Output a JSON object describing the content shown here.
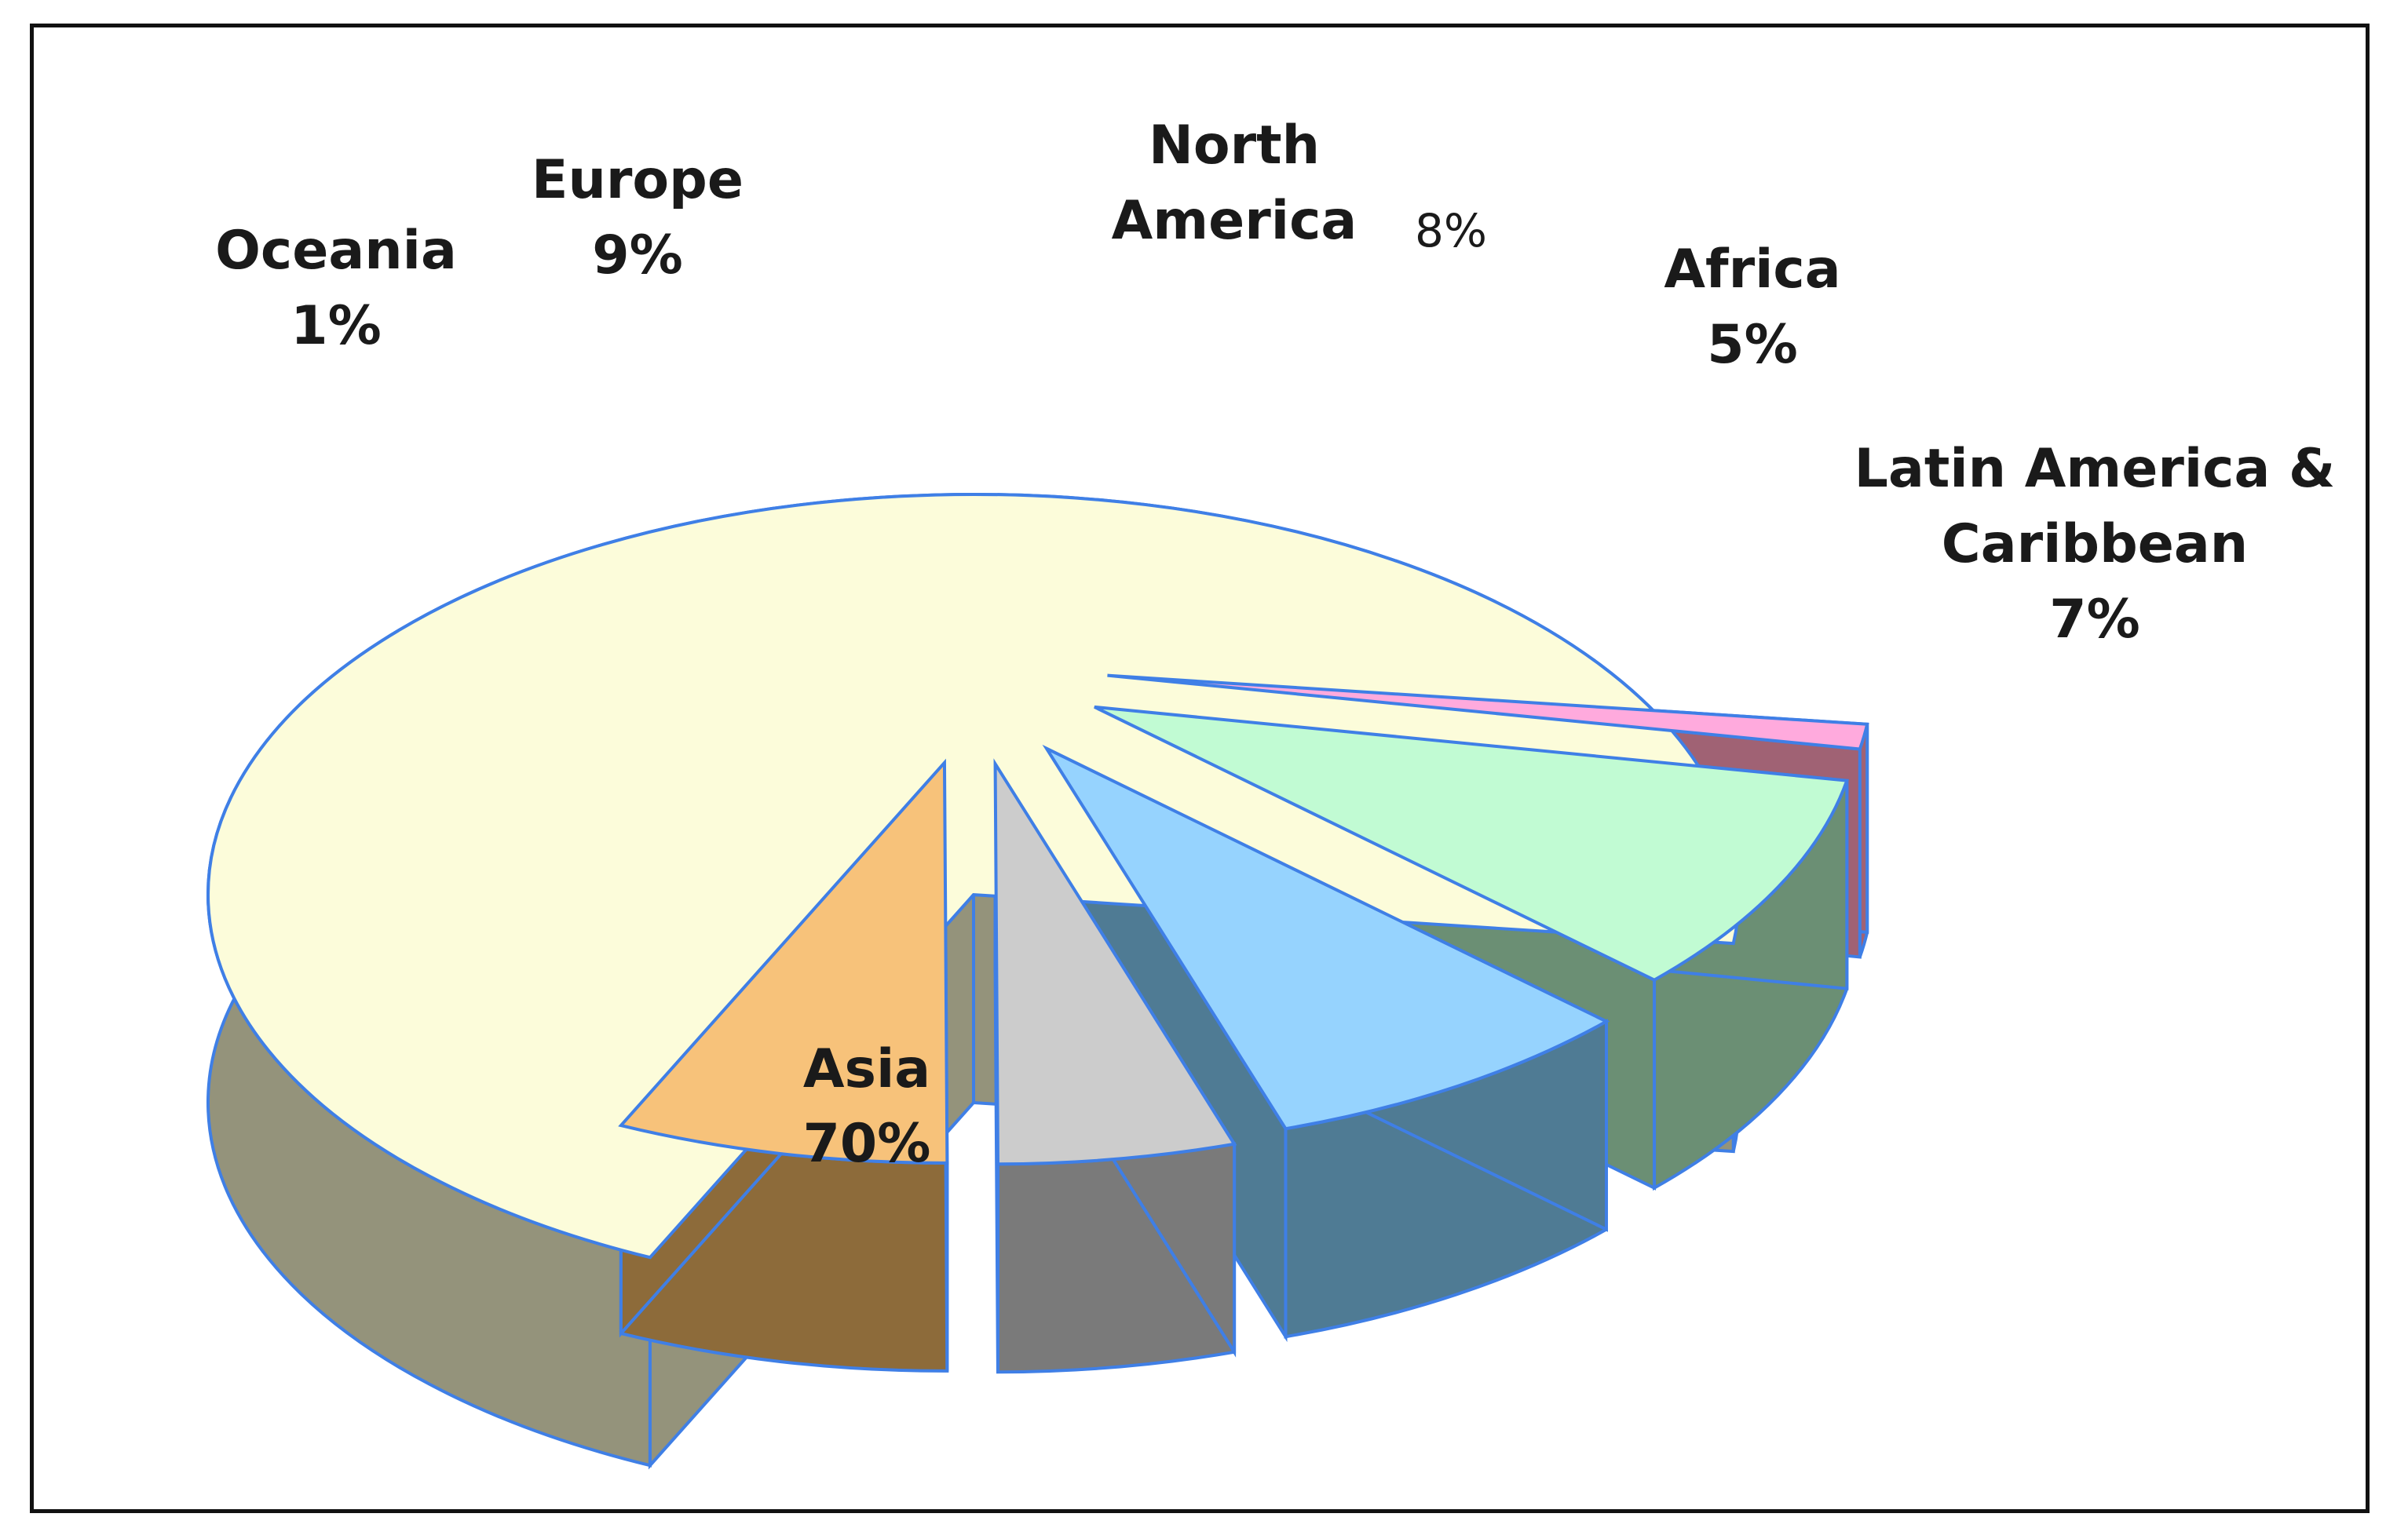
{
  "chart_data": {
    "type": "pie",
    "title": "",
    "slices": [
      {
        "name": "Asia",
        "value": 70,
        "label": "70%",
        "top_color": "#fcfcda",
        "side_color": "#94937b"
      },
      {
        "name": "Oceania",
        "value": 1,
        "label": "1%",
        "top_color": "#ffaadd",
        "side_color": "#a06274"
      },
      {
        "name": "Europe",
        "value": 9,
        "label": "9%",
        "top_color": "#c1fbd3",
        "side_color": "#6b8f74"
      },
      {
        "name": "North America",
        "value": 8,
        "label": "8%",
        "top_color": "#96d3fe",
        "side_color": "#4f7b94"
      },
      {
        "name": "Africa",
        "value": 5,
        "label": "5%",
        "top_color": "#cccccc",
        "side_color": "#7a7a7a"
      },
      {
        "name": "Latin America & Caribbean",
        "value": 7,
        "label": "7%",
        "top_color": "#f7c27a",
        "side_color": "#8d6b3a"
      }
    ],
    "edge_color": "#3f7fe6",
    "legend": "none"
  }
}
